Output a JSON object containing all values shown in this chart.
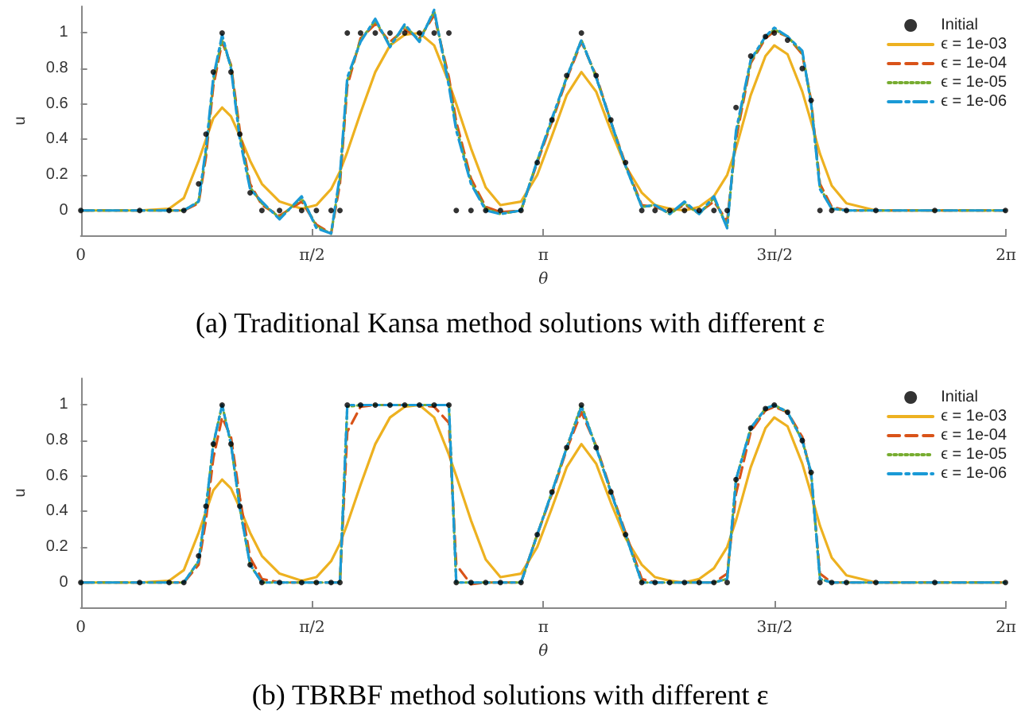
{
  "chart_data": [
    {
      "type": "line",
      "xlabel": "θ",
      "ylabel": "u",
      "annotations": [
        "(a) Traditional Kansa method solutions with different ε"
      ],
      "x": [
        0,
        0.4,
        0.6,
        0.7,
        0.8,
        0.85,
        0.9,
        0.96,
        1.02,
        1.08,
        1.15,
        1.23,
        1.35,
        1.5,
        1.6,
        1.7,
        1.76,
        1.81,
        1.9,
        2.0,
        2.1,
        2.2,
        2.3,
        2.4,
        2.5,
        2.55,
        2.65,
        2.75,
        2.85,
        2.99,
        3.1,
        3.2,
        3.3,
        3.4,
        3.5,
        3.6,
        3.7,
        3.81,
        3.9,
        4.0,
        4.1,
        4.2,
        4.3,
        4.39,
        4.45,
        4.55,
        4.65,
        4.71,
        4.8,
        4.9,
        4.96,
        5.02,
        5.1,
        5.2,
        5.4,
        5.8,
        6.28
      ],
      "xlim": [
        0,
        6.2832
      ],
      "xticks": [
        {
          "value": 0,
          "label": "0"
        },
        {
          "value": 1.5708,
          "label": "π/2"
        },
        {
          "value": 3.1416,
          "label": "π"
        },
        {
          "value": 4.7124,
          "label": "3π/2"
        },
        {
          "value": 6.2832,
          "label": "2π"
        }
      ],
      "ylim": [
        -0.14,
        1.15
      ],
      "yticks": [
        0,
        0.2,
        0.4,
        0.6,
        0.8,
        1
      ],
      "grid": false,
      "legend": "top right",
      "series": [
        {
          "name": "Initial",
          "type": "scatter",
          "marker": "circle",
          "color": "#000000",
          "values": [
            0,
            0,
            0,
            0,
            0.15,
            0.43,
            0.78,
            1,
            0.78,
            0.43,
            0.1,
            0,
            0,
            0,
            0,
            0,
            0,
            1,
            1,
            1,
            1,
            1,
            1,
            1,
            1,
            0,
            0,
            0,
            0,
            0,
            0.27,
            0.51,
            0.76,
            1,
            0.76,
            0.51,
            0.27,
            0,
            0,
            0,
            0,
            0,
            0,
            0,
            0.58,
            0.87,
            0.98,
            1,
            0.96,
            0.8,
            0.62,
            0,
            0,
            0,
            0,
            0,
            0
          ]
        },
        {
          "name": "ϵ = 1e-03",
          "marker": "none",
          "line_style": "solid",
          "color": "#edb120",
          "values": [
            0,
            0,
            0.01,
            0.07,
            0.28,
            0.4,
            0.52,
            0.58,
            0.53,
            0.42,
            0.28,
            0.15,
            0.05,
            0.01,
            0.03,
            0.12,
            0.22,
            0.33,
            0.55,
            0.78,
            0.93,
            0.99,
            1,
            0.93,
            0.72,
            0.6,
            0.35,
            0.13,
            0.03,
            0.05,
            0.2,
            0.42,
            0.65,
            0.78,
            0.67,
            0.45,
            0.25,
            0.1,
            0.03,
            0.01,
            0,
            0.02,
            0.08,
            0.2,
            0.35,
            0.65,
            0.87,
            0.93,
            0.88,
            0.67,
            0.5,
            0.32,
            0.14,
            0.04,
            0,
            0,
            0
          ]
        },
        {
          "name": "ϵ = 1e-04",
          "marker": "none",
          "line_style": "dashed",
          "color": "#d95319",
          "values": [
            0,
            0,
            0,
            0,
            0.04,
            0.3,
            0.7,
            0.95,
            0.82,
            0.45,
            0.15,
            0.03,
            -0.03,
            0.05,
            -0.08,
            -0.13,
            0.15,
            0.7,
            0.97,
            1.05,
            0.95,
            1.02,
            0.97,
            1.1,
            0.75,
            0.5,
            0.18,
            0.02,
            -0.01,
            0,
            0.27,
            0.5,
            0.74,
            0.95,
            0.76,
            0.5,
            0.26,
            0.03,
            0.02,
            -0.01,
            0.03,
            -0.01,
            0.05,
            -0.06,
            0.4,
            0.83,
            0.97,
            1.01,
            0.98,
            0.88,
            0.62,
            0.15,
            0.02,
            0,
            0,
            0,
            0
          ]
        },
        {
          "name": "ϵ = 1e-05",
          "marker": "none",
          "line_style": "dotted",
          "color": "#77ac30",
          "values": [
            0,
            0,
            0,
            0,
            0.05,
            0.33,
            0.73,
            0.97,
            0.81,
            0.42,
            0.13,
            0.04,
            -0.04,
            0.07,
            -0.09,
            -0.13,
            0.18,
            0.73,
            0.96,
            1.07,
            0.93,
            1.04,
            0.96,
            1.12,
            0.72,
            0.47,
            0.16,
            0.01,
            -0.02,
            0,
            0.28,
            0.51,
            0.75,
            0.96,
            0.75,
            0.5,
            0.25,
            0.02,
            0.03,
            -0.02,
            0.04,
            -0.02,
            0.07,
            -0.09,
            0.43,
            0.84,
            0.98,
            1.02,
            0.98,
            0.89,
            0.61,
            0.13,
            0.01,
            0,
            0,
            0,
            0
          ]
        },
        {
          "name": "ϵ = 1e-06",
          "marker": "none",
          "line_style": "dashdot",
          "color": "#1a9ad6",
          "values": [
            0,
            0,
            0,
            0,
            0.05,
            0.35,
            0.75,
            0.99,
            0.8,
            0.4,
            0.12,
            0.05,
            -0.05,
            0.08,
            -0.1,
            -0.13,
            0.2,
            0.75,
            0.95,
            1.08,
            0.92,
            1.05,
            0.95,
            1.13,
            0.7,
            0.45,
            0.15,
            0,
            -0.02,
            0,
            0.28,
            0.52,
            0.75,
            0.96,
            0.75,
            0.5,
            0.25,
            0.02,
            0.03,
            -0.02,
            0.05,
            -0.02,
            0.08,
            -0.1,
            0.45,
            0.85,
            0.98,
            1.03,
            0.98,
            0.9,
            0.6,
            0.12,
            0.01,
            0,
            0,
            0,
            0
          ]
        }
      ]
    },
    {
      "type": "line",
      "xlabel": "θ",
      "ylabel": "u",
      "annotations": [
        "(b) TBRBF method solutions with different ε"
      ],
      "x": [
        0,
        0.4,
        0.6,
        0.7,
        0.8,
        0.85,
        0.9,
        0.96,
        1.02,
        1.08,
        1.15,
        1.23,
        1.35,
        1.5,
        1.6,
        1.7,
        1.76,
        1.81,
        1.9,
        2.0,
        2.1,
        2.2,
        2.3,
        2.4,
        2.5,
        2.55,
        2.65,
        2.75,
        2.85,
        2.99,
        3.1,
        3.2,
        3.3,
        3.4,
        3.5,
        3.6,
        3.7,
        3.81,
        3.9,
        4.0,
        4.1,
        4.2,
        4.3,
        4.39,
        4.45,
        4.55,
        4.65,
        4.71,
        4.8,
        4.9,
        4.96,
        5.02,
        5.1,
        5.2,
        5.4,
        5.8,
        6.28
      ],
      "xlim": [
        0,
        6.2832
      ],
      "xticks": [
        {
          "value": 0,
          "label": "0"
        },
        {
          "value": 1.5708,
          "label": "π/2"
        },
        {
          "value": 3.1416,
          "label": "π"
        },
        {
          "value": 4.7124,
          "label": "3π/2"
        },
        {
          "value": 6.2832,
          "label": "2π"
        }
      ],
      "ylim": [
        -0.14,
        1.15
      ],
      "yticks": [
        0,
        0.2,
        0.4,
        0.6,
        0.8,
        1
      ],
      "grid": false,
      "legend": "top right",
      "series": [
        {
          "name": "Initial",
          "type": "scatter",
          "marker": "circle",
          "color": "#000000",
          "values": [
            0,
            0,
            0,
            0,
            0.15,
            0.43,
            0.78,
            1,
            0.78,
            0.43,
            0.1,
            0,
            0,
            0,
            0,
            0,
            0,
            1,
            1,
            1,
            1,
            1,
            1,
            1,
            1,
            0,
            0,
            0,
            0,
            0,
            0.27,
            0.51,
            0.76,
            1,
            0.76,
            0.51,
            0.27,
            0,
            0,
            0,
            0,
            0,
            0,
            0,
            0.58,
            0.87,
            0.98,
            1,
            0.96,
            0.8,
            0.62,
            0,
            0,
            0,
            0,
            0,
            0
          ]
        },
        {
          "name": "ϵ = 1e-03",
          "marker": "none",
          "line_style": "solid",
          "color": "#edb120",
          "values": [
            0,
            0,
            0.01,
            0.07,
            0.28,
            0.4,
            0.52,
            0.58,
            0.53,
            0.42,
            0.28,
            0.15,
            0.05,
            0.01,
            0.03,
            0.12,
            0.22,
            0.33,
            0.55,
            0.78,
            0.93,
            0.99,
            1,
            0.93,
            0.72,
            0.6,
            0.35,
            0.13,
            0.03,
            0.05,
            0.2,
            0.42,
            0.65,
            0.78,
            0.67,
            0.45,
            0.25,
            0.1,
            0.03,
            0.01,
            0,
            0.02,
            0.08,
            0.2,
            0.35,
            0.65,
            0.87,
            0.93,
            0.88,
            0.67,
            0.5,
            0.32,
            0.14,
            0.04,
            0,
            0,
            0
          ]
        },
        {
          "name": "ϵ = 1e-04",
          "marker": "none",
          "line_style": "dashed",
          "color": "#d95319",
          "values": [
            0,
            0,
            0,
            0,
            0.1,
            0.35,
            0.7,
            0.93,
            0.82,
            0.48,
            0.14,
            0.02,
            0,
            0,
            0,
            0,
            0,
            0.85,
            0.99,
            1,
            1,
            1,
            1,
            0.99,
            0.9,
            0.1,
            -0.01,
            0,
            0,
            0,
            0.27,
            0.5,
            0.75,
            0.96,
            0.77,
            0.52,
            0.28,
            0.02,
            0,
            0,
            0,
            0,
            0,
            0.05,
            0.5,
            0.85,
            0.97,
            0.99,
            0.96,
            0.82,
            0.6,
            0.05,
            0,
            0,
            0,
            0,
            0
          ]
        },
        {
          "name": "ϵ = 1e-05",
          "marker": "none",
          "line_style": "dotted",
          "color": "#77ac30",
          "values": [
            0,
            0,
            0,
            0,
            0.12,
            0.42,
            0.78,
            1,
            0.78,
            0.42,
            0.1,
            0,
            0,
            0,
            0,
            0,
            0,
            0.99,
            1,
            1,
            1,
            1,
            1,
            1,
            1,
            0,
            0,
            0,
            0,
            0,
            0.27,
            0.51,
            0.76,
            1,
            0.76,
            0.51,
            0.27,
            0,
            0,
            0,
            0,
            0,
            0,
            0.02,
            0.58,
            0.87,
            0.98,
            1,
            0.96,
            0.8,
            0.62,
            0.02,
            0,
            0,
            0,
            0,
            0
          ]
        },
        {
          "name": "ϵ = 1e-06",
          "marker": "none",
          "line_style": "dashdot",
          "color": "#1a9ad6",
          "values": [
            0,
            0,
            0,
            0,
            0.12,
            0.42,
            0.78,
            1,
            0.78,
            0.42,
            0.1,
            0,
            0,
            0,
            0,
            0,
            0,
            1,
            1,
            1,
            1,
            1,
            1,
            1,
            1,
            0,
            0,
            0,
            0,
            0,
            0.27,
            0.51,
            0.76,
            0.99,
            0.76,
            0.51,
            0.27,
            0,
            0,
            0,
            0,
            0,
            0,
            0.02,
            0.58,
            0.87,
            0.98,
            1,
            0.96,
            0.8,
            0.62,
            0.02,
            0,
            0,
            0,
            0,
            0
          ]
        }
      ]
    }
  ]
}
